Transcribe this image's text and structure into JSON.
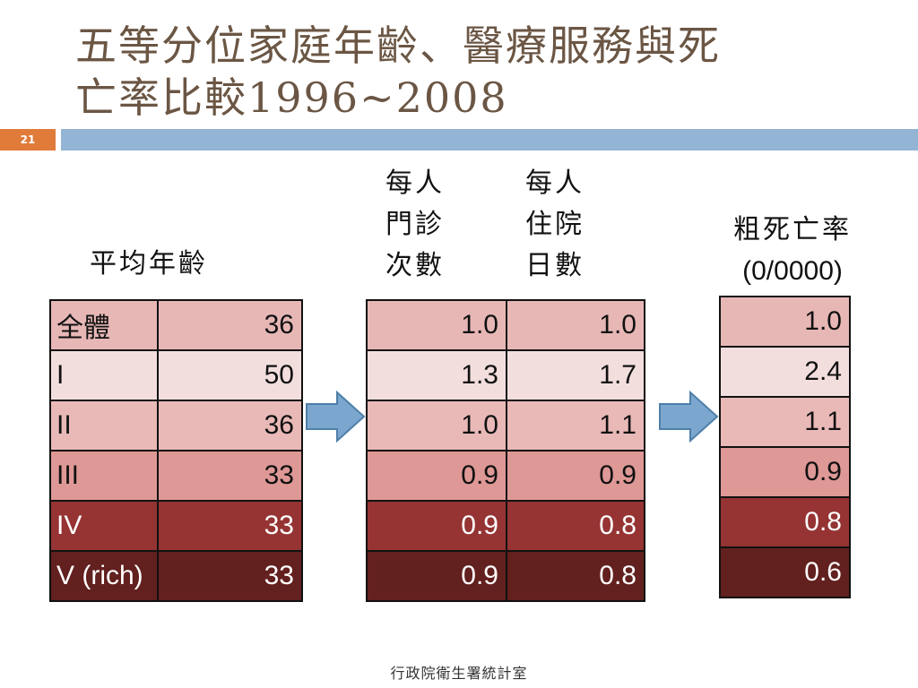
{
  "slide": {
    "title_line1": "五等分位家庭年齡、醫療服務與死",
    "title_line2": "亡率比較1996~2008",
    "number": "21",
    "footer": "行政院衛生署統計室"
  },
  "headers": {
    "age": "平均年齡",
    "outpatient": [
      "每人",
      "門診",
      "次數"
    ],
    "inpatient": [
      "每人",
      "住院",
      "日數"
    ],
    "mortality_line1": "粗死亡率",
    "mortality_line2": "(0/0000)"
  },
  "rows": [
    {
      "label": "全體",
      "age": "36",
      "outpatient": "1.0",
      "inpatient": "1.0",
      "mortality": "1.0"
    },
    {
      "label": "I",
      "age": "50",
      "outpatient": "1.3",
      "inpatient": "1.7",
      "mortality": "2.4"
    },
    {
      "label": "II",
      "age": "36",
      "outpatient": "1.0",
      "inpatient": "1.1",
      "mortality": "1.1"
    },
    {
      "label": "III",
      "age": "33",
      "outpatient": "0.9",
      "inpatient": "0.9",
      "mortality": "0.9"
    },
    {
      "label": "IV",
      "age": "33",
      "outpatient": "0.9",
      "inpatient": "0.8",
      "mortality": "0.8"
    },
    {
      "label": "V (rich)",
      "age": "33",
      "outpatient": "0.9",
      "inpatient": "0.8",
      "mortality": "0.6"
    }
  ],
  "colors": {
    "title": "#6b5644",
    "slide_number_bg": "#e07b39",
    "title_bar": "#93b4d4",
    "arrow_fill": "#7ba7cf",
    "arrow_stroke": "#4f7fa8"
  }
}
